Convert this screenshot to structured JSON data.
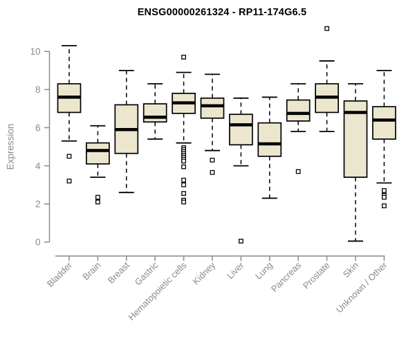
{
  "colors": {
    "background": "#ffffff",
    "box_fill": "#ece6ce",
    "box_stroke": "#000000",
    "median": "#000000",
    "whisker": "#000000",
    "outlier_stroke": "#000000",
    "axis": "#8a8a8a",
    "title": "#000000"
  },
  "chart_data": {
    "type": "boxplot",
    "title": "ENSG00000261324 - RP11-174G6.5",
    "xlabel": "",
    "ylabel": "Expression",
    "ylim": [
      0,
      10
    ],
    "yticks": [
      0,
      2,
      4,
      6,
      8,
      10
    ],
    "grid": false,
    "legend": false,
    "categories": [
      "Bladder",
      "Brain",
      "Breast",
      "Gastric",
      "Hematopoietic cells",
      "Kidney",
      "Liver",
      "Lung",
      "Pancreas",
      "Prostate",
      "Skin",
      "Unknown / Other"
    ],
    "boxes": [
      {
        "category": "Bladder",
        "whisker_low": 5.3,
        "q1": 6.8,
        "median": 7.6,
        "q3": 8.3,
        "whisker_high": 10.3,
        "outliers": [
          4.5,
          3.2
        ]
      },
      {
        "category": "Brain",
        "whisker_low": 3.4,
        "q1": 4.1,
        "median": 4.8,
        "q3": 5.2,
        "whisker_high": 6.1,
        "outliers": [
          2.35,
          2.1
        ]
      },
      {
        "category": "Breast",
        "whisker_low": 2.6,
        "q1": 4.65,
        "median": 5.9,
        "q3": 7.2,
        "whisker_high": 9.0,
        "outliers": []
      },
      {
        "category": "Gastric",
        "whisker_low": 5.4,
        "q1": 6.3,
        "median": 6.55,
        "q3": 7.25,
        "whisker_high": 8.3,
        "outliers": []
      },
      {
        "category": "Hematopoietic cells",
        "whisker_low": 5.2,
        "q1": 6.75,
        "median": 7.3,
        "q3": 7.8,
        "whisker_high": 8.9,
        "outliers": [
          9.7,
          4.95,
          4.85,
          4.75,
          4.65,
          4.55,
          4.45,
          4.35,
          4.25,
          3.95,
          3.25,
          3.0,
          2.55,
          2.2,
          2.1
        ]
      },
      {
        "category": "Kidney",
        "whisker_low": 4.8,
        "q1": 6.5,
        "median": 7.15,
        "q3": 7.55,
        "whisker_high": 8.8,
        "outliers": [
          4.3,
          3.65
        ]
      },
      {
        "category": "Liver",
        "whisker_low": 4.0,
        "q1": 5.1,
        "median": 6.15,
        "q3": 6.7,
        "whisker_high": 7.55,
        "outliers": [
          0.05
        ]
      },
      {
        "category": "Lung",
        "whisker_low": 2.3,
        "q1": 4.5,
        "median": 5.15,
        "q3": 6.25,
        "whisker_high": 7.6,
        "outliers": []
      },
      {
        "category": "Pancreas",
        "whisker_low": 5.8,
        "q1": 6.35,
        "median": 6.75,
        "q3": 7.45,
        "whisker_high": 8.3,
        "outliers": [
          3.7
        ]
      },
      {
        "category": "Prostate",
        "whisker_low": 5.8,
        "q1": 6.8,
        "median": 7.6,
        "q3": 8.3,
        "whisker_high": 9.5,
        "outliers": [
          11.2
        ]
      },
      {
        "category": "Skin",
        "whisker_low": 0.05,
        "q1": 3.4,
        "median": 6.8,
        "q3": 7.4,
        "whisker_high": 8.3,
        "outliers": []
      },
      {
        "category": "Unknown / Other",
        "whisker_low": 3.1,
        "q1": 5.4,
        "median": 6.4,
        "q3": 7.1,
        "whisker_high": 9.0,
        "outliers": [
          2.7,
          2.45,
          2.35,
          1.9
        ]
      }
    ]
  }
}
